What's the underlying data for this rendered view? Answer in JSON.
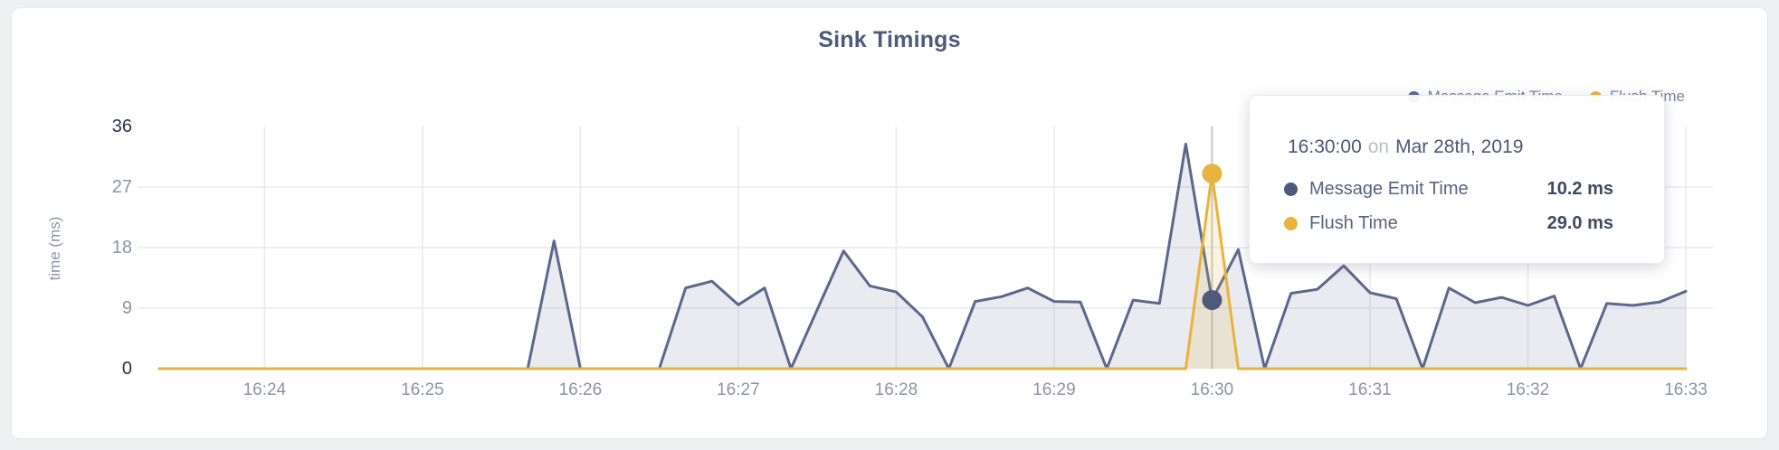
{
  "page": {
    "background": "#eff0f2",
    "card_background": "#ffffff"
  },
  "chart_data": {
    "type": "area",
    "title": "Sink Timings",
    "ylabel": "time (ms)",
    "xlabel": "",
    "ylim": [
      0,
      36
    ],
    "y_tick_labels": [
      "36",
      "27",
      "18",
      "9",
      "0"
    ],
    "y_gridlines": [
      27,
      18,
      9
    ],
    "x_tick_labels": [
      "16:24",
      "16:25",
      "16:26",
      "16:27",
      "16:28",
      "16:29",
      "16:30",
      "16:31",
      "16:32",
      "16:33"
    ],
    "x_start": "16:23:20",
    "x_end": "16:33:00",
    "x_interval_seconds": 10,
    "grid": true,
    "legend_position": "top-right",
    "hovered_index": 40,
    "series": [
      {
        "name": "Message Emit Time",
        "color": "#5a688c",
        "fill": "rgba(90,104,140,0.13)",
        "marker_color": "#4d5a7c",
        "values": [
          0,
          0,
          0,
          0,
          0,
          0,
          0,
          0,
          0,
          0,
          0,
          0,
          0,
          0,
          0,
          19,
          0,
          0,
          0,
          0,
          12,
          13,
          9.5,
          12,
          0,
          8.8,
          17.5,
          12.3,
          11.4,
          7.7,
          0,
          10,
          10.7,
          12,
          10,
          9.9,
          0,
          10.2,
          9.7,
          33.4,
          10.2,
          17.7,
          0,
          11.2,
          11.8,
          15.3,
          11.3,
          10.4,
          0,
          12,
          9.8,
          10.6,
          9.4,
          10.8,
          0,
          9.7,
          9.4,
          9.9,
          11.5
        ]
      },
      {
        "name": "Flush Time",
        "color": "#e9b23d",
        "fill": "rgba(233,178,61,0.16)",
        "marker_color": "#eab23f",
        "values": [
          0,
          0,
          0,
          0,
          0,
          0,
          0,
          0,
          0,
          0,
          0,
          0,
          0,
          0,
          0,
          0,
          0,
          0,
          0,
          0,
          0,
          0,
          0,
          0,
          0,
          0,
          0,
          0,
          0,
          0,
          0,
          0,
          0,
          0,
          0,
          0,
          0,
          0,
          0,
          0,
          29,
          0,
          0,
          0,
          0,
          0,
          0,
          0,
          0,
          0,
          0,
          0,
          0,
          0,
          0,
          0,
          0,
          0,
          0
        ]
      }
    ]
  },
  "legend": {
    "items": [
      {
        "label": "Message Emit Time",
        "color": "#5a688c"
      },
      {
        "label": "Flush Time",
        "color": "#e9b23d"
      }
    ]
  },
  "tooltip": {
    "time": "16:30:00",
    "connector": "on",
    "date": "Mar 28th, 2019",
    "rows": [
      {
        "label": "Message Emit Time",
        "value": "10.2 ms",
        "color": "#4d5a7c"
      },
      {
        "label": "Flush Time",
        "value": "29.0 ms",
        "color": "#eab23f"
      }
    ]
  },
  "colors": {
    "title": "#4d5a7c",
    "axis_label": "#8d93a6",
    "axis_label_emphasis": "#2a3347",
    "gridline": "#eaeaee",
    "crosshair": "#c7c8cc",
    "navy": "#5a688c",
    "yellow": "#e9b23d"
  }
}
